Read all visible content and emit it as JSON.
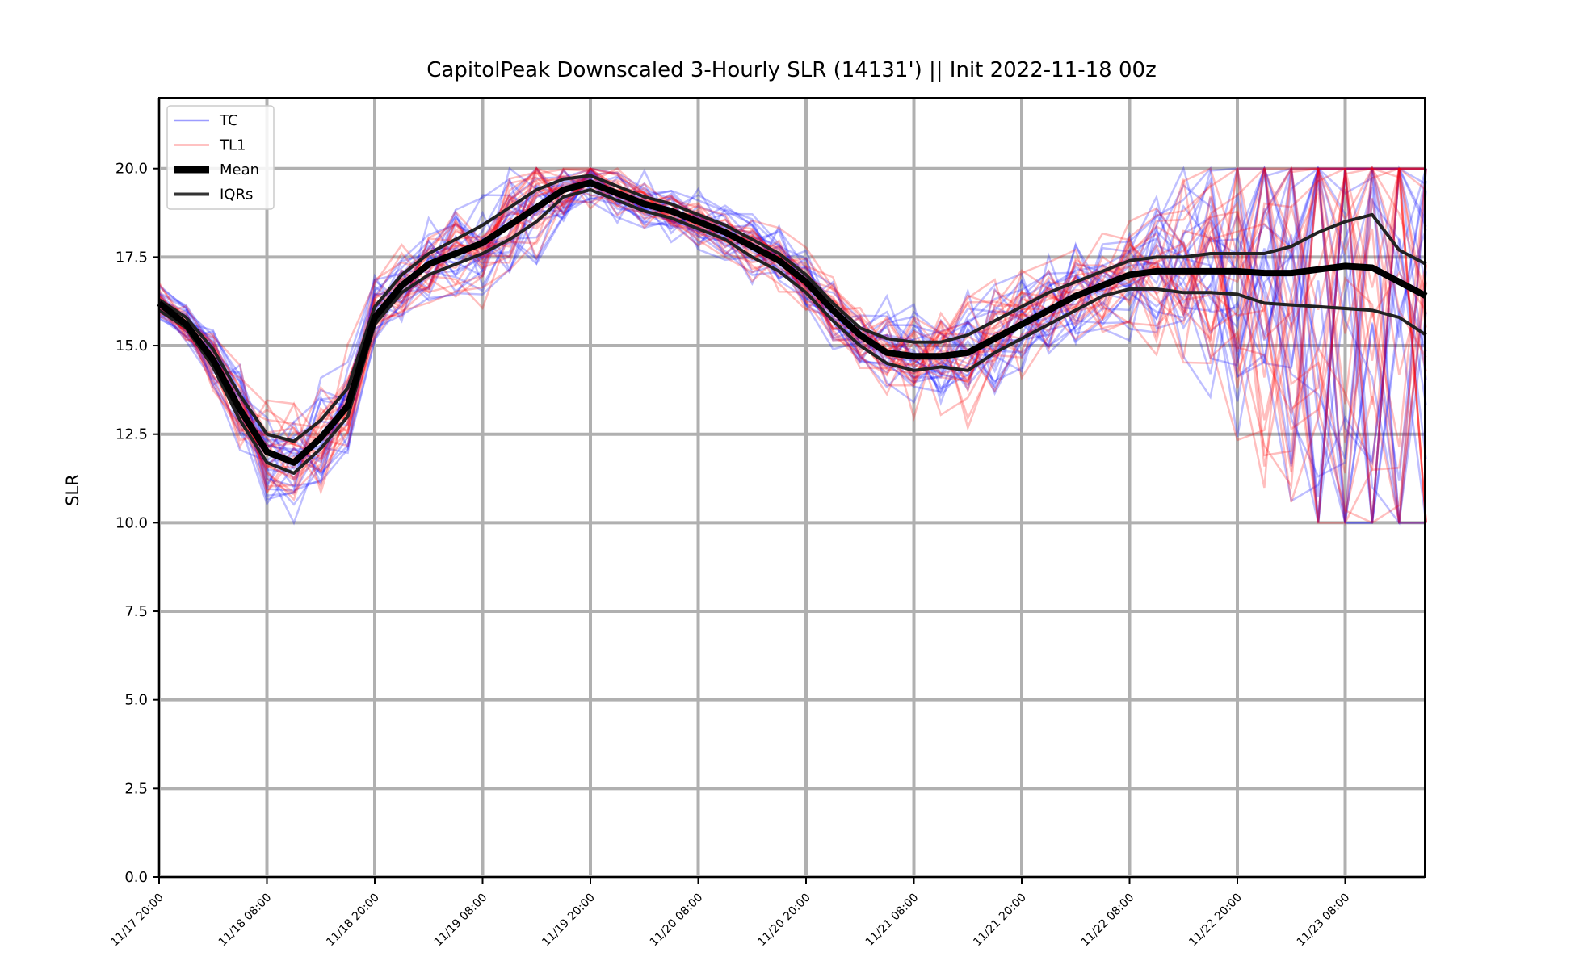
{
  "chart_data": {
    "type": "line",
    "title": "CapitolPeak Downscaled 3-Hourly SLR (14131') || Init 2022-11-18 00z",
    "ylabel": "SLR",
    "xlabel": "",
    "ylim": [
      0,
      22
    ],
    "yticks": [
      "0.0",
      "2.5",
      "5.0",
      "7.5",
      "10.0",
      "12.5",
      "15.0",
      "17.5",
      "20.0"
    ],
    "xticks": [
      "11/17 20:00",
      "11/18 08:00",
      "11/18 20:00",
      "11/19 08:00",
      "11/19 20:00",
      "11/20 08:00",
      "11/20 20:00",
      "11/21 08:00",
      "11/21 20:00",
      "11/22 08:00",
      "11/22 20:00",
      "11/23 08:00"
    ],
    "x_hours": [
      0,
      3,
      6,
      9,
      12,
      15,
      18,
      21,
      24,
      27,
      30,
      33,
      36,
      39,
      42,
      45,
      48,
      51,
      54,
      57,
      60,
      63,
      66,
      69,
      72,
      75,
      78,
      81,
      84,
      87,
      90,
      93,
      96,
      99,
      102,
      105,
      108,
      111,
      114,
      117,
      120,
      123,
      126,
      129,
      132,
      135,
      138,
      141
    ],
    "grid": true,
    "legend_position": "top-left",
    "legend": [
      {
        "label": "TC",
        "color": "#5a5aff",
        "style": "thin"
      },
      {
        "label": "TL1",
        "color": "#ff7a7a",
        "style": "thin"
      },
      {
        "label": "Mean",
        "color": "#000000",
        "style": "thick"
      },
      {
        "label": "IQRs",
        "color": "#333333",
        "style": "medium"
      }
    ],
    "colors": {
      "TC": "#0000ff",
      "TL1": "#ff0000",
      "mean": "#000000",
      "iqr": "#222222"
    },
    "series": [
      {
        "name": "Mean",
        "values": [
          16.2,
          15.6,
          14.6,
          13.2,
          12.0,
          11.7,
          12.4,
          13.3,
          15.8,
          16.7,
          17.3,
          17.6,
          17.9,
          18.4,
          18.9,
          19.4,
          19.6,
          19.3,
          19.0,
          18.8,
          18.5,
          18.2,
          17.8,
          17.4,
          16.8,
          16.0,
          15.3,
          14.8,
          14.7,
          14.7,
          14.8,
          15.2,
          15.6,
          16.0,
          16.4,
          16.7,
          17.0,
          17.1,
          17.1,
          17.1,
          17.1,
          17.05,
          17.05,
          17.15,
          17.25,
          17.2,
          16.8,
          16.4
        ]
      },
      {
        "name": "IQR upper",
        "values": [
          16.3,
          15.8,
          14.9,
          13.6,
          12.5,
          12.3,
          12.9,
          13.8,
          16.1,
          17.0,
          17.6,
          18.0,
          18.4,
          18.9,
          19.4,
          19.7,
          19.8,
          19.5,
          19.2,
          19.0,
          18.7,
          18.4,
          18.0,
          17.6,
          17.0,
          16.2,
          15.5,
          15.2,
          15.1,
          15.1,
          15.3,
          15.7,
          16.1,
          16.5,
          16.8,
          17.1,
          17.4,
          17.5,
          17.5,
          17.6,
          17.6,
          17.6,
          17.8,
          18.2,
          18.5,
          18.7,
          17.7,
          17.3
        ]
      },
      {
        "name": "IQR lower",
        "values": [
          16.0,
          15.5,
          14.4,
          12.9,
          11.7,
          11.4,
          12.1,
          13.0,
          15.6,
          16.5,
          17.0,
          17.3,
          17.6,
          18.0,
          18.5,
          19.2,
          19.4,
          19.1,
          18.8,
          18.6,
          18.3,
          18.0,
          17.5,
          17.1,
          16.5,
          15.7,
          15.0,
          14.5,
          14.3,
          14.4,
          14.3,
          14.8,
          15.2,
          15.6,
          16.0,
          16.4,
          16.6,
          16.6,
          16.5,
          16.5,
          16.45,
          16.2,
          16.15,
          16.1,
          16.05,
          16.0,
          15.8,
          15.3
        ]
      }
    ]
  }
}
